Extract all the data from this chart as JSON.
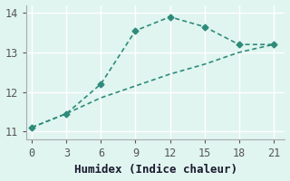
{
  "line1_x": [
    0,
    3,
    6,
    9,
    12,
    15,
    18,
    21
  ],
  "line1_y": [
    11.1,
    11.45,
    12.2,
    13.55,
    13.9,
    13.65,
    13.2,
    13.2
  ],
  "line2_x": [
    0,
    3,
    6,
    9,
    12,
    15,
    18,
    21
  ],
  "line2_y": [
    11.1,
    11.45,
    11.85,
    12.15,
    12.45,
    12.7,
    13.0,
    13.2
  ],
  "line_color": "#2e8b7a",
  "xlabel": "Humidex (Indice chaleur)",
  "ylim": [
    10.8,
    14.2
  ],
  "xlim": [
    -0.5,
    22
  ],
  "xticks": [
    0,
    3,
    6,
    9,
    12,
    15,
    18,
    21
  ],
  "yticks": [
    11,
    12,
    13,
    14
  ],
  "bg_color": "#e0f5f0",
  "grid_color": "#ffffff",
  "xlabel_fontsize": 9,
  "tick_fontsize": 8.5
}
